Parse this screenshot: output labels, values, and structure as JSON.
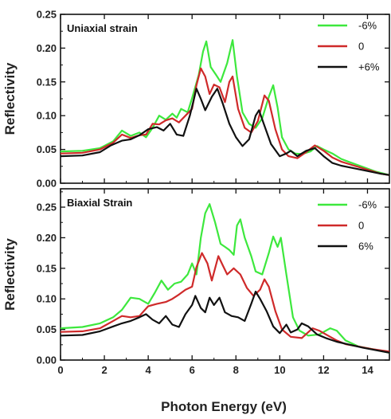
{
  "chart_data": [
    {
      "type": "line",
      "title": "Uniaxial strain",
      "xlabel": "",
      "ylabel": "Reflectivity",
      "xlim": [
        0,
        15
      ],
      "ylim": [
        0,
        0.25
      ],
      "xticks": [
        "0",
        "2",
        "4",
        "6",
        "8",
        "10",
        "12",
        "14"
      ],
      "yticks": [
        "0.00",
        "0.05",
        "0.10",
        "0.15",
        "0.20",
        "0.25"
      ],
      "legend_position": "top-right",
      "series": [
        {
          "name": "-6%",
          "color": "#3de83d",
          "points": [
            [
              0,
              0.047
            ],
            [
              1,
              0.048
            ],
            [
              1.8,
              0.052
            ],
            [
              2.4,
              0.062
            ],
            [
              2.8,
              0.078
            ],
            [
              3.2,
              0.07
            ],
            [
              3.6,
              0.075
            ],
            [
              3.9,
              0.068
            ],
            [
              4.2,
              0.082
            ],
            [
              4.5,
              0.1
            ],
            [
              4.8,
              0.094
            ],
            [
              5.1,
              0.103
            ],
            [
              5.3,
              0.097
            ],
            [
              5.5,
              0.11
            ],
            [
              5.8,
              0.105
            ],
            [
              6.0,
              0.126
            ],
            [
              6.3,
              0.16
            ],
            [
              6.5,
              0.195
            ],
            [
              6.65,
              0.21
            ],
            [
              6.85,
              0.172
            ],
            [
              7.1,
              0.16
            ],
            [
              7.3,
              0.15
            ],
            [
              7.6,
              0.178
            ],
            [
              7.85,
              0.212
            ],
            [
              8.05,
              0.158
            ],
            [
              8.3,
              0.105
            ],
            [
              8.6,
              0.088
            ],
            [
              8.9,
              0.082
            ],
            [
              9.2,
              0.096
            ],
            [
              9.5,
              0.128
            ],
            [
              9.7,
              0.145
            ],
            [
              9.9,
              0.112
            ],
            [
              10.1,
              0.068
            ],
            [
              10.4,
              0.05
            ],
            [
              10.7,
              0.044
            ],
            [
              11.0,
              0.043
            ],
            [
              11.4,
              0.047
            ],
            [
              11.7,
              0.055
            ],
            [
              12.0,
              0.05
            ],
            [
              12.4,
              0.044
            ],
            [
              12.8,
              0.036
            ],
            [
              13.2,
              0.031
            ],
            [
              13.8,
              0.024
            ],
            [
              14.4,
              0.017
            ],
            [
              15,
              0.012
            ]
          ]
        },
        {
          "name": "0",
          "color": "#cf2a2a",
          "points": [
            [
              0,
              0.044
            ],
            [
              1,
              0.045
            ],
            [
              1.8,
              0.05
            ],
            [
              2.4,
              0.06
            ],
            [
              2.8,
              0.072
            ],
            [
              3.2,
              0.067
            ],
            [
              3.6,
              0.071
            ],
            [
              3.9,
              0.072
            ],
            [
              4.2,
              0.088
            ],
            [
              4.5,
              0.087
            ],
            [
              4.8,
              0.093
            ],
            [
              5.1,
              0.096
            ],
            [
              5.4,
              0.09
            ],
            [
              5.7,
              0.1
            ],
            [
              6.0,
              0.11
            ],
            [
              6.2,
              0.145
            ],
            [
              6.4,
              0.17
            ],
            [
              6.6,
              0.158
            ],
            [
              6.8,
              0.132
            ],
            [
              7.0,
              0.146
            ],
            [
              7.25,
              0.142
            ],
            [
              7.5,
              0.12
            ],
            [
              7.7,
              0.15
            ],
            [
              7.85,
              0.158
            ],
            [
              8.1,
              0.11
            ],
            [
              8.4,
              0.082
            ],
            [
              8.7,
              0.075
            ],
            [
              9.0,
              0.092
            ],
            [
              9.3,
              0.13
            ],
            [
              9.5,
              0.122
            ],
            [
              9.8,
              0.08
            ],
            [
              10.1,
              0.05
            ],
            [
              10.4,
              0.04
            ],
            [
              10.8,
              0.037
            ],
            [
              11.2,
              0.046
            ],
            [
              11.6,
              0.056
            ],
            [
              12.0,
              0.048
            ],
            [
              12.4,
              0.038
            ],
            [
              12.8,
              0.032
            ],
            [
              13.4,
              0.026
            ],
            [
              14.0,
              0.02
            ],
            [
              14.6,
              0.014
            ],
            [
              15,
              0.012
            ]
          ]
        },
        {
          "name": "+6%",
          "color": "#111111",
          "points": [
            [
              0,
              0.04
            ],
            [
              1,
              0.041
            ],
            [
              1.8,
              0.046
            ],
            [
              2.3,
              0.056
            ],
            [
              2.8,
              0.063
            ],
            [
              3.2,
              0.065
            ],
            [
              3.6,
              0.071
            ],
            [
              4.0,
              0.08
            ],
            [
              4.4,
              0.083
            ],
            [
              4.7,
              0.078
            ],
            [
              5.0,
              0.088
            ],
            [
              5.3,
              0.072
            ],
            [
              5.6,
              0.07
            ],
            [
              5.9,
              0.1
            ],
            [
              6.2,
              0.14
            ],
            [
              6.4,
              0.125
            ],
            [
              6.6,
              0.108
            ],
            [
              6.9,
              0.128
            ],
            [
              7.15,
              0.14
            ],
            [
              7.4,
              0.118
            ],
            [
              7.7,
              0.088
            ],
            [
              8.0,
              0.068
            ],
            [
              8.3,
              0.055
            ],
            [
              8.6,
              0.065
            ],
            [
              8.9,
              0.1
            ],
            [
              9.05,
              0.108
            ],
            [
              9.3,
              0.085
            ],
            [
              9.6,
              0.058
            ],
            [
              10.0,
              0.04
            ],
            [
              10.3,
              0.044
            ],
            [
              10.5,
              0.048
            ],
            [
              10.8,
              0.04
            ],
            [
              11.2,
              0.048
            ],
            [
              11.6,
              0.052
            ],
            [
              12.0,
              0.04
            ],
            [
              12.4,
              0.03
            ],
            [
              12.8,
              0.026
            ],
            [
              13.4,
              0.022
            ],
            [
              14.0,
              0.018
            ],
            [
              14.6,
              0.014
            ],
            [
              15,
              0.012
            ]
          ]
        }
      ]
    },
    {
      "type": "line",
      "title": "Biaxial Strain",
      "xlabel": "Photon Energy (eV)",
      "ylabel": "Reflectivity",
      "xlim": [
        0,
        15
      ],
      "ylim": [
        0,
        0.28
      ],
      "xticks": [
        "0",
        "2",
        "4",
        "6",
        "8",
        "10",
        "12",
        "14"
      ],
      "yticks": [
        "0.00",
        "0.05",
        "0.10",
        "0.15",
        "0.20",
        "0.25"
      ],
      "legend_position": "top-right",
      "series": [
        {
          "name": "-6%",
          "color": "#3de83d",
          "points": [
            [
              0,
              0.052
            ],
            [
              1,
              0.054
            ],
            [
              1.8,
              0.06
            ],
            [
              2.4,
              0.07
            ],
            [
              2.8,
              0.082
            ],
            [
              3.2,
              0.102
            ],
            [
              3.6,
              0.1
            ],
            [
              4.0,
              0.092
            ],
            [
              4.3,
              0.11
            ],
            [
              4.6,
              0.13
            ],
            [
              4.9,
              0.115
            ],
            [
              5.2,
              0.125
            ],
            [
              5.5,
              0.128
            ],
            [
              5.8,
              0.14
            ],
            [
              6.0,
              0.158
            ],
            [
              6.2,
              0.14
            ],
            [
              6.4,
              0.2
            ],
            [
              6.6,
              0.24
            ],
            [
              6.8,
              0.255
            ],
            [
              7.05,
              0.225
            ],
            [
              7.3,
              0.19
            ],
            [
              7.5,
              0.185
            ],
            [
              7.7,
              0.18
            ],
            [
              7.9,
              0.172
            ],
            [
              8.05,
              0.22
            ],
            [
              8.2,
              0.23
            ],
            [
              8.4,
              0.2
            ],
            [
              8.7,
              0.17
            ],
            [
              8.9,
              0.145
            ],
            [
              9.2,
              0.14
            ],
            [
              9.5,
              0.175
            ],
            [
              9.7,
              0.202
            ],
            [
              9.9,
              0.185
            ],
            [
              10.05,
              0.2
            ],
            [
              10.3,
              0.14
            ],
            [
              10.6,
              0.07
            ],
            [
              10.9,
              0.048
            ],
            [
              11.3,
              0.04
            ],
            [
              11.8,
              0.042
            ],
            [
              12.3,
              0.052
            ],
            [
              12.6,
              0.048
            ],
            [
              13.0,
              0.032
            ],
            [
              13.6,
              0.022
            ],
            [
              14.2,
              0.018
            ],
            [
              15,
              0.012
            ]
          ]
        },
        {
          "name": "0",
          "color": "#cf2a2a",
          "points": [
            [
              0,
              0.046
            ],
            [
              1,
              0.047
            ],
            [
              1.8,
              0.052
            ],
            [
              2.4,
              0.064
            ],
            [
              2.8,
              0.072
            ],
            [
              3.2,
              0.07
            ],
            [
              3.6,
              0.072
            ],
            [
              4.0,
              0.088
            ],
            [
              4.4,
              0.092
            ],
            [
              4.8,
              0.095
            ],
            [
              5.1,
              0.1
            ],
            [
              5.4,
              0.107
            ],
            [
              5.7,
              0.115
            ],
            [
              6.0,
              0.12
            ],
            [
              6.2,
              0.152
            ],
            [
              6.45,
              0.175
            ],
            [
              6.7,
              0.158
            ],
            [
              6.9,
              0.13
            ],
            [
              7.2,
              0.17
            ],
            [
              7.4,
              0.155
            ],
            [
              7.6,
              0.14
            ],
            [
              7.9,
              0.15
            ],
            [
              8.2,
              0.14
            ],
            [
              8.5,
              0.118
            ],
            [
              8.8,
              0.105
            ],
            [
              9.1,
              0.115
            ],
            [
              9.3,
              0.132
            ],
            [
              9.5,
              0.12
            ],
            [
              9.8,
              0.08
            ],
            [
              10.1,
              0.05
            ],
            [
              10.5,
              0.038
            ],
            [
              11.0,
              0.036
            ],
            [
              11.5,
              0.052
            ],
            [
              11.8,
              0.048
            ],
            [
              12.2,
              0.04
            ],
            [
              12.6,
              0.032
            ],
            [
              13.0,
              0.026
            ],
            [
              13.6,
              0.022
            ],
            [
              14.2,
              0.018
            ],
            [
              15,
              0.014
            ]
          ]
        },
        {
          "name": "6%",
          "color": "#111111",
          "points": [
            [
              0,
              0.04
            ],
            [
              1,
              0.041
            ],
            [
              1.8,
              0.047
            ],
            [
              2.4,
              0.055
            ],
            [
              2.8,
              0.06
            ],
            [
              3.2,
              0.064
            ],
            [
              3.6,
              0.07
            ],
            [
              3.9,
              0.075
            ],
            [
              4.2,
              0.066
            ],
            [
              4.5,
              0.06
            ],
            [
              4.8,
              0.072
            ],
            [
              5.1,
              0.058
            ],
            [
              5.4,
              0.054
            ],
            [
              5.7,
              0.075
            ],
            [
              6.0,
              0.09
            ],
            [
              6.15,
              0.105
            ],
            [
              6.4,
              0.085
            ],
            [
              6.6,
              0.078
            ],
            [
              6.8,
              0.102
            ],
            [
              7.0,
              0.09
            ],
            [
              7.25,
              0.102
            ],
            [
              7.5,
              0.078
            ],
            [
              7.8,
              0.072
            ],
            [
              8.1,
              0.07
            ],
            [
              8.4,
              0.064
            ],
            [
              8.7,
              0.092
            ],
            [
              8.9,
              0.112
            ],
            [
              9.1,
              0.1
            ],
            [
              9.4,
              0.08
            ],
            [
              9.7,
              0.055
            ],
            [
              10.0,
              0.044
            ],
            [
              10.3,
              0.058
            ],
            [
              10.5,
              0.045
            ],
            [
              10.8,
              0.05
            ],
            [
              11.0,
              0.06
            ],
            [
              11.3,
              0.055
            ],
            [
              11.7,
              0.042
            ],
            [
              12.1,
              0.036
            ],
            [
              12.6,
              0.03
            ],
            [
              13.2,
              0.025
            ],
            [
              13.8,
              0.02
            ],
            [
              14.4,
              0.016
            ],
            [
              15,
              0.012
            ]
          ]
        }
      ]
    }
  ]
}
